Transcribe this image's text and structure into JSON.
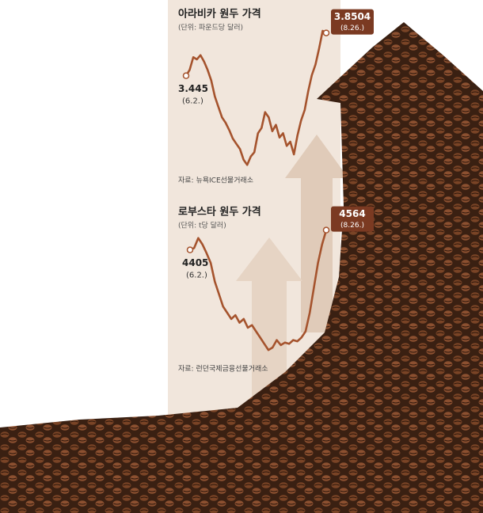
{
  "chart_data": [
    {
      "type": "line",
      "title": "아라비카 원두 가격",
      "subtitle": "(단위: 파운드당 달러)",
      "source": "자료: 뉴욕ICE선물거래소",
      "categories": [
        "(6.2.)",
        null,
        null,
        null,
        null,
        null,
        null,
        null,
        null,
        null,
        null,
        null,
        null,
        null,
        null,
        null,
        null,
        null,
        null,
        null,
        null,
        null,
        null,
        null,
        null,
        null,
        null,
        null,
        null,
        null,
        null,
        null,
        null,
        null,
        null,
        null,
        null,
        null,
        null,
        "(8.26.)"
      ],
      "values": [
        3.445,
        3.5,
        3.62,
        3.6,
        3.64,
        3.58,
        3.5,
        3.4,
        3.25,
        3.15,
        3.05,
        3.0,
        2.93,
        2.85,
        2.8,
        2.75,
        2.65,
        2.6,
        2.68,
        2.72,
        2.9,
        2.95,
        3.1,
        3.05,
        2.92,
        2.98,
        2.86,
        2.9,
        2.78,
        2.82,
        2.7,
        2.88,
        3.02,
        3.12,
        3.3,
        3.45,
        3.55,
        3.7,
        3.87,
        3.8504
      ],
      "color": "#a5532d",
      "ylim": [
        2.55,
        3.9
      ]
    },
    {
      "type": "line",
      "title": "로부스타 원두 가격",
      "subtitle": "(단위: t당 달러)",
      "source": "자료: 런던국제금융선물거래소",
      "categories": [
        "(6.2.)",
        null,
        null,
        null,
        null,
        null,
        null,
        null,
        null,
        null,
        null,
        null,
        null,
        null,
        null,
        null,
        null,
        null,
        null,
        null,
        null,
        null,
        null,
        null,
        null,
        null,
        null,
        null,
        null,
        null,
        null,
        null,
        null,
        "(8.26.)"
      ],
      "values": [
        4405,
        4420,
        4500,
        4450,
        4380,
        4300,
        4150,
        4050,
        3950,
        3900,
        3850,
        3880,
        3820,
        3850,
        3780,
        3800,
        3750,
        3700,
        3650,
        3600,
        3620,
        3680,
        3640,
        3660,
        3650,
        3680,
        3670,
        3700,
        3750,
        3900,
        4100,
        4300,
        4450,
        4564
      ],
      "color": "#a5532d",
      "ylim": [
        3550,
        4600
      ]
    }
  ]
}
